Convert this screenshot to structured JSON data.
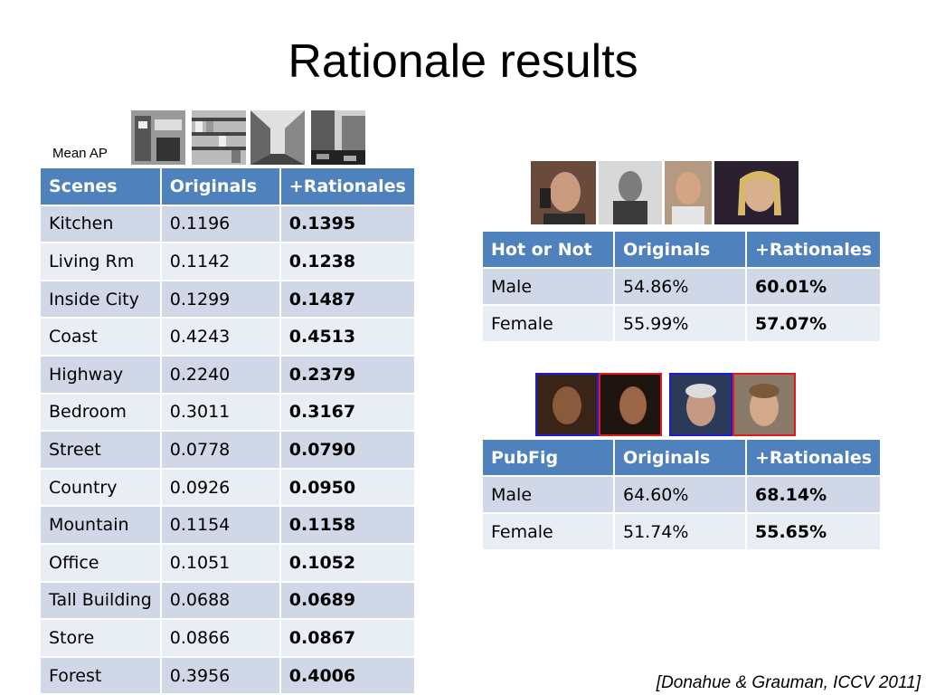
{
  "slide": {
    "title": "Rationale results",
    "mean_ap_label": "Mean AP",
    "citation": "[Donahue & Grauman, ICCV 2011]"
  },
  "scenes_table": {
    "headers": [
      "Scenes",
      "Originals",
      "+Rationales"
    ],
    "rows": [
      [
        "Kitchen",
        "0.1196",
        "0.1395"
      ],
      [
        "Living Rm",
        "0.1142",
        "0.1238"
      ],
      [
        "Inside City",
        "0.1299",
        "0.1487"
      ],
      [
        "Coast",
        "0.4243",
        "0.4513"
      ],
      [
        "Highway",
        "0.2240",
        "0.2379"
      ],
      [
        "Bedroom",
        "0.3011",
        "0.3167"
      ],
      [
        "Street",
        "0.0778",
        "0.0790"
      ],
      [
        "Country",
        "0.0926",
        "0.0950"
      ],
      [
        "Mountain",
        "0.1154",
        "0.1158"
      ],
      [
        "Office",
        "0.1051",
        "0.1052"
      ],
      [
        "Tall Building",
        "0.0688",
        "0.0689"
      ],
      [
        "Store",
        "0.0866",
        "0.0867"
      ],
      [
        "Forest",
        "0.3956",
        "0.4006"
      ]
    ]
  },
  "hot_table": {
    "headers": [
      "Hot or Not",
      "Originals",
      "+Rationales"
    ],
    "rows": [
      [
        "Male",
        "54.86%",
        "60.01%"
      ],
      [
        "Female",
        "55.99%",
        "57.07%"
      ]
    ]
  },
  "pubfig_table": {
    "headers": [
      "PubFig",
      "Originals",
      "+Rationales"
    ],
    "rows": [
      [
        "Male",
        "64.60%",
        "68.14%"
      ],
      [
        "Female",
        "51.74%",
        "55.65%"
      ]
    ]
  },
  "colors": {
    "header_blue": "#4f81bd",
    "row_dark": "#d0d8e8",
    "row_light": "#e9edf4",
    "pubfig_frame_blue": "#1d1dd8",
    "pubfig_frame_red": "#e11b1b"
  }
}
